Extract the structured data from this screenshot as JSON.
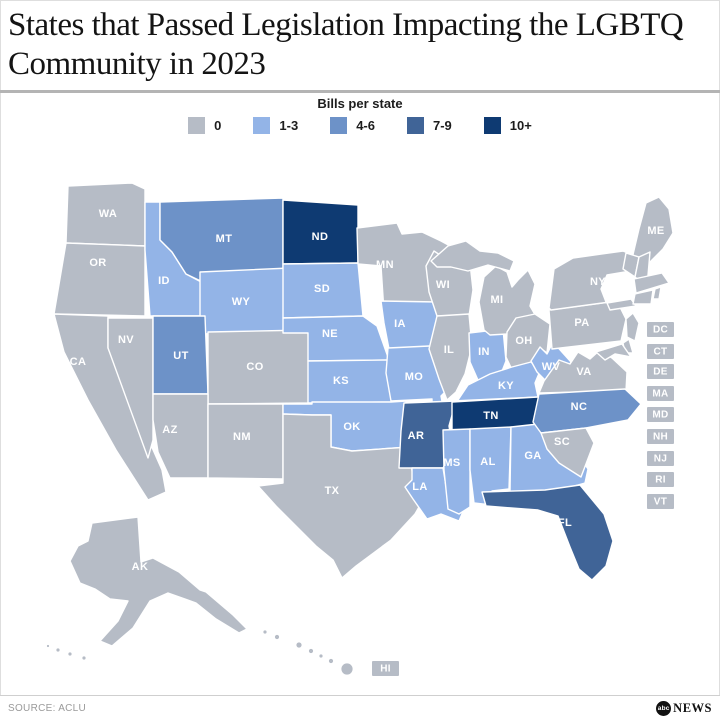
{
  "header": {
    "title": "States that Passed Legislation Impacting the LGBTQ Community in 2023"
  },
  "legend": {
    "title": "Bills per state",
    "categories": [
      {
        "label": "0",
        "color": "#b6bcc6"
      },
      {
        "label": "1-3",
        "color": "#93b4e7"
      },
      {
        "label": "4-6",
        "color": "#6d92c8"
      },
      {
        "label": "7-9",
        "color": "#406497"
      },
      {
        "label": "10+",
        "color": "#0e3a72"
      }
    ]
  },
  "chart_data": {
    "type": "choropleth",
    "title": "States that Passed Legislation Impacting the LGBTQ Community in 2023",
    "legend_title": "Bills per state",
    "categories": [
      "0",
      "1-3",
      "4-6",
      "7-9",
      "10+"
    ],
    "states": [
      {
        "abbr": "WA",
        "bills": "0"
      },
      {
        "abbr": "OR",
        "bills": "0"
      },
      {
        "abbr": "CA",
        "bills": "0"
      },
      {
        "abbr": "NV",
        "bills": "0"
      },
      {
        "abbr": "ID",
        "bills": "1-3"
      },
      {
        "abbr": "MT",
        "bills": "4-6"
      },
      {
        "abbr": "WY",
        "bills": "1-3"
      },
      {
        "abbr": "UT",
        "bills": "4-6"
      },
      {
        "abbr": "CO",
        "bills": "0"
      },
      {
        "abbr": "AZ",
        "bills": "0"
      },
      {
        "abbr": "NM",
        "bills": "0"
      },
      {
        "abbr": "ND",
        "bills": "10+"
      },
      {
        "abbr": "SD",
        "bills": "1-3"
      },
      {
        "abbr": "NE",
        "bills": "1-3"
      },
      {
        "abbr": "KS",
        "bills": "1-3"
      },
      {
        "abbr": "OK",
        "bills": "1-3"
      },
      {
        "abbr": "TX",
        "bills": "0"
      },
      {
        "abbr": "MN",
        "bills": "0"
      },
      {
        "abbr": "IA",
        "bills": "1-3"
      },
      {
        "abbr": "MO",
        "bills": "1-3"
      },
      {
        "abbr": "AR",
        "bills": "7-9"
      },
      {
        "abbr": "LA",
        "bills": "1-3"
      },
      {
        "abbr": "WI",
        "bills": "0"
      },
      {
        "abbr": "IL",
        "bills": "0"
      },
      {
        "abbr": "IN",
        "bills": "1-3"
      },
      {
        "abbr": "MI",
        "bills": "0"
      },
      {
        "abbr": "OH",
        "bills": "0"
      },
      {
        "abbr": "KY",
        "bills": "1-3"
      },
      {
        "abbr": "TN",
        "bills": "10+"
      },
      {
        "abbr": "MS",
        "bills": "1-3"
      },
      {
        "abbr": "AL",
        "bills": "1-3"
      },
      {
        "abbr": "GA",
        "bills": "1-3"
      },
      {
        "abbr": "WV",
        "bills": "1-3"
      },
      {
        "abbr": "VA",
        "bills": "0"
      },
      {
        "abbr": "NC",
        "bills": "4-6"
      },
      {
        "abbr": "SC",
        "bills": "0"
      },
      {
        "abbr": "FL",
        "bills": "7-9"
      },
      {
        "abbr": "PA",
        "bills": "0"
      },
      {
        "abbr": "NY",
        "bills": "0"
      },
      {
        "abbr": "ME",
        "bills": "0"
      },
      {
        "abbr": "VT",
        "bills": "0"
      },
      {
        "abbr": "NH",
        "bills": "0"
      },
      {
        "abbr": "MA",
        "bills": "0"
      },
      {
        "abbr": "CT",
        "bills": "0"
      },
      {
        "abbr": "RI",
        "bills": "0"
      },
      {
        "abbr": "NJ",
        "bills": "0"
      },
      {
        "abbr": "DE",
        "bills": "0"
      },
      {
        "abbr": "MD",
        "bills": "0"
      },
      {
        "abbr": "DC",
        "bills": "0"
      },
      {
        "abbr": "AK",
        "bills": "0"
      },
      {
        "abbr": "HI",
        "bills": "0"
      }
    ]
  },
  "footer": {
    "source": "SOURCE: ACLU",
    "logo_abc": "abc",
    "logo_news": "NEWS"
  }
}
